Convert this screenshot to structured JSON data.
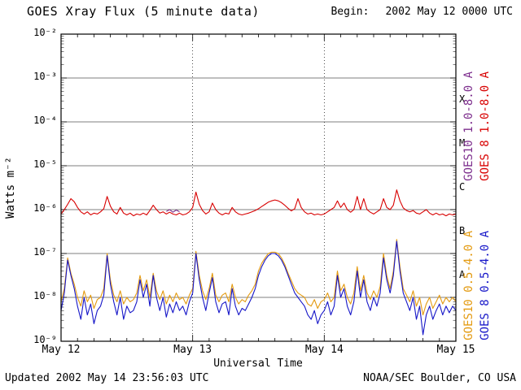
{
  "header": {
    "title": "GOES Xray Flux (5 minute data)",
    "begin_label": "Begin:",
    "begin_value": "2002 May 12 0000 UTC"
  },
  "footer": {
    "updated": "Updated 2002 May 14 23:56:03 UTC",
    "credit": "NOAA/SEC Boulder, CO USA"
  },
  "chart_data": {
    "type": "line",
    "title": "GOES Xray Flux (5 minute data)",
    "xlabel": "Universal Time",
    "ylabel": "Watts m⁻²",
    "x_axis": {
      "lim": [
        12,
        15
      ],
      "unit": "2002 May, day of month",
      "major_ticks": [
        {
          "x": 12,
          "label": "May 12"
        },
        {
          "x": 13,
          "label": "May 13"
        },
        {
          "x": 14,
          "label": "May 14"
        },
        {
          "x": 15,
          "label": "May 15"
        }
      ],
      "minor_tick_step_days": 0.125
    },
    "y_axis": {
      "log_lim": [
        -9,
        -2
      ],
      "tick_exponents": [
        -2,
        -3,
        -4,
        -5,
        -6,
        -7,
        -8,
        -9
      ]
    },
    "flare_class_labels": [
      {
        "label": "X",
        "log_center": -3.5
      },
      {
        "label": "M",
        "log_center": -4.5
      },
      {
        "label": "C",
        "log_center": -5.5
      },
      {
        "label": "B",
        "log_center": -6.5
      },
      {
        "label": "A",
        "log_center": -7.5
      }
    ],
    "h_gridlines_log": [
      -3,
      -4,
      -5,
      -6,
      -7,
      -8
    ],
    "v_gridlines_x": [
      13,
      14
    ],
    "legends": [
      {
        "label": "GOES10 1.0-8.0 A",
        "color": "#7d2e8d"
      },
      {
        "label": "GOES 8 1.0-8.0 A",
        "color": "#d80000"
      },
      {
        "label": "GOES10 0.5-4.0 A",
        "color": "#e39a10"
      },
      {
        "label": "GOES 8 0.5-4.0 A",
        "color": "#1616c8"
      }
    ],
    "series": [
      {
        "name": "GOES10 0.5-4.0 A",
        "color": "#e39a10",
        "x_start": 12.0,
        "x_step": 0.025,
        "log10_flux": [
          -8.1,
          -7.8,
          -7.1,
          -7.45,
          -7.7,
          -8.0,
          -8.2,
          -7.85,
          -8.1,
          -7.95,
          -8.25,
          -8.05,
          -8.0,
          -7.8,
          -7.0,
          -7.6,
          -7.95,
          -8.1,
          -7.85,
          -8.15,
          -8.0,
          -8.1,
          -8.05,
          -7.9,
          -7.5,
          -7.85,
          -7.6,
          -8.0,
          -7.45,
          -7.85,
          -8.05,
          -7.85,
          -8.15,
          -7.95,
          -8.1,
          -7.9,
          -8.05,
          -8.0,
          -8.15,
          -7.95,
          -7.8,
          -6.95,
          -7.5,
          -7.85,
          -8.05,
          -7.8,
          -7.45,
          -7.95,
          -8.1,
          -7.95,
          -7.9,
          -8.1,
          -7.7,
          -8.0,
          -8.15,
          -8.05,
          -8.1,
          -7.95,
          -7.85,
          -7.7,
          -7.4,
          -7.22,
          -7.1,
          -7.0,
          -6.97,
          -6.97,
          -7.0,
          -7.1,
          -7.25,
          -7.45,
          -7.62,
          -7.8,
          -7.9,
          -7.95,
          -8.0,
          -8.15,
          -8.2,
          -8.05,
          -8.25,
          -8.1,
          -8.05,
          -7.9,
          -8.1,
          -8.0,
          -7.4,
          -7.85,
          -7.7,
          -8.0,
          -8.15,
          -7.9,
          -7.3,
          -7.85,
          -7.5,
          -7.9,
          -8.05,
          -7.85,
          -8.0,
          -7.75,
          -7.0,
          -7.5,
          -7.8,
          -7.4,
          -6.68,
          -7.3,
          -7.8,
          -7.95,
          -8.1,
          -7.85,
          -8.2,
          -8.0,
          -8.4,
          -8.15,
          -8.0,
          -8.25,
          -8.1,
          -7.95,
          -8.15,
          -8.0,
          -8.1,
          -8.0,
          -8.1
        ]
      },
      {
        "name": "GOES 8 0.5-4.0 A",
        "color": "#1616c8",
        "x_start": 12.0,
        "x_step": 0.025,
        "log10_flux": [
          -8.3,
          -7.9,
          -7.15,
          -7.5,
          -7.8,
          -8.2,
          -8.5,
          -8.0,
          -8.4,
          -8.15,
          -8.6,
          -8.3,
          -8.2,
          -7.95,
          -7.05,
          -7.7,
          -8.1,
          -8.4,
          -8.0,
          -8.5,
          -8.2,
          -8.35,
          -8.3,
          -8.1,
          -7.6,
          -8.0,
          -7.7,
          -8.2,
          -7.5,
          -8.0,
          -8.3,
          -8.0,
          -8.45,
          -8.15,
          -8.35,
          -8.1,
          -8.3,
          -8.2,
          -8.4,
          -8.1,
          -7.9,
          -7.0,
          -7.6,
          -8.0,
          -8.3,
          -7.9,
          -7.55,
          -8.1,
          -8.35,
          -8.15,
          -8.1,
          -8.4,
          -7.8,
          -8.2,
          -8.4,
          -8.25,
          -8.3,
          -8.15,
          -8.0,
          -7.8,
          -7.5,
          -7.3,
          -7.15,
          -7.05,
          -7.0,
          -7.0,
          -7.05,
          -7.15,
          -7.3,
          -7.5,
          -7.7,
          -7.9,
          -8.0,
          -8.1,
          -8.2,
          -8.4,
          -8.5,
          -8.3,
          -8.6,
          -8.4,
          -8.3,
          -8.1,
          -8.4,
          -8.2,
          -7.5,
          -8.0,
          -7.8,
          -8.2,
          -8.4,
          -8.1,
          -7.4,
          -8.0,
          -7.6,
          -8.1,
          -8.3,
          -8.0,
          -8.2,
          -7.9,
          -7.1,
          -7.6,
          -7.9,
          -7.5,
          -6.72,
          -7.4,
          -7.9,
          -8.1,
          -8.3,
          -8.0,
          -8.5,
          -8.2,
          -8.85,
          -8.4,
          -8.2,
          -8.5,
          -8.3,
          -8.15,
          -8.4,
          -8.2,
          -8.35,
          -8.2,
          -8.3
        ]
      },
      {
        "name": "GOES10 1.0-8.0 A",
        "color": "#7d2e8d",
        "x_start": 12.8,
        "x_step": 0.025,
        "log10_flux": [
          -6.04,
          -6.0,
          -6.06,
          -6.01,
          -6.05
        ]
      },
      {
        "name": "GOES 8 1.0-8.0 A",
        "color": "#d80000",
        "x_start": 12.0,
        "x_step": 0.025,
        "log10_flux": [
          -6.1,
          -6.0,
          -5.88,
          -5.75,
          -5.82,
          -5.95,
          -6.05,
          -6.1,
          -6.05,
          -6.12,
          -6.08,
          -6.1,
          -6.05,
          -5.98,
          -5.7,
          -5.92,
          -6.05,
          -6.1,
          -5.95,
          -6.08,
          -6.12,
          -6.08,
          -6.14,
          -6.1,
          -6.12,
          -6.08,
          -6.12,
          -6.02,
          -5.9,
          -6.0,
          -6.08,
          -6.05,
          -6.1,
          -6.06,
          -6.1,
          -6.12,
          -6.08,
          -6.12,
          -6.1,
          -6.05,
          -5.95,
          -5.6,
          -5.88,
          -6.02,
          -6.1,
          -6.05,
          -5.85,
          -6.0,
          -6.08,
          -6.12,
          -6.08,
          -6.1,
          -5.95,
          -6.05,
          -6.1,
          -6.12,
          -6.1,
          -6.08,
          -6.05,
          -6.02,
          -5.98,
          -5.93,
          -5.88,
          -5.83,
          -5.8,
          -5.78,
          -5.8,
          -5.84,
          -5.9,
          -5.97,
          -6.03,
          -5.98,
          -5.75,
          -5.95,
          -6.05,
          -6.1,
          -6.08,
          -6.12,
          -6.1,
          -6.12,
          -6.1,
          -6.05,
          -6.0,
          -5.95,
          -5.8,
          -5.95,
          -5.85,
          -6.0,
          -6.06,
          -6.0,
          -5.7,
          -6.0,
          -5.75,
          -6.0,
          -6.06,
          -6.1,
          -6.05,
          -6.0,
          -5.75,
          -5.95,
          -6.0,
          -5.9,
          -5.55,
          -5.8,
          -5.96,
          -6.02,
          -6.05,
          -6.02,
          -6.08,
          -6.1,
          -6.05,
          -6.0,
          -6.08,
          -6.12,
          -6.08,
          -6.12,
          -6.1,
          -6.14,
          -6.1,
          -6.12,
          -6.1
        ]
      }
    ]
  }
}
